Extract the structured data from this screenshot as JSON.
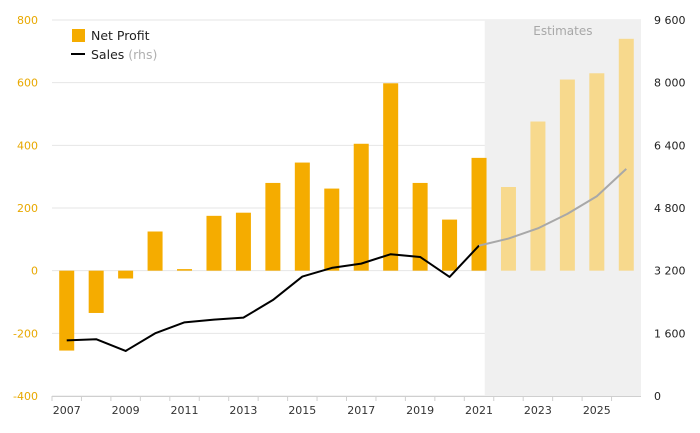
{
  "chart_data": {
    "type": "bar+line",
    "x": [
      2007,
      2008,
      2009,
      2010,
      2011,
      2012,
      2013,
      2014,
      2015,
      2016,
      2017,
      2018,
      2019,
      2020,
      2021,
      2022,
      2023,
      2024,
      2025,
      2026
    ],
    "x_tick_labels": [
      "2007",
      "2009",
      "2011",
      "2013",
      "2015",
      "2017",
      "2019",
      "2021",
      "2023",
      "2025"
    ],
    "series": [
      {
        "name": "Net Profit",
        "type": "bar",
        "axis": "left",
        "color": "#f5ac00",
        "estimate_color": "#f7d98d",
        "values": [
          -255,
          -135,
          -25,
          125,
          5,
          175,
          185,
          280,
          345,
          262,
          405,
          598,
          280,
          163,
          360,
          267,
          476,
          610,
          630,
          740
        ]
      },
      {
        "name": "Sales",
        "name_suffix": "(rhs)",
        "type": "line",
        "axis": "right",
        "color": "#000000",
        "estimate_color": "#a8a8a8",
        "values": [
          1420,
          1450,
          1150,
          1600,
          1880,
          1950,
          2000,
          2450,
          3050,
          3270,
          3380,
          3620,
          3550,
          3040,
          3840,
          4020,
          4280,
          4650,
          5100,
          5800
        ]
      }
    ],
    "estimates": {
      "label": "Estimates",
      "from_year": 2022,
      "shade_color": "#f0f0f0"
    },
    "y_left": {
      "range": [
        -400,
        800
      ],
      "ticks": [
        -400,
        -200,
        0,
        200,
        400,
        600,
        800
      ],
      "tick_labels": [
        "-400",
        "-200",
        "0",
        "200",
        "400",
        "600",
        "800"
      ],
      "color": "#e8a800"
    },
    "y_right": {
      "range": [
        0,
        9600
      ],
      "ticks": [
        0,
        1600,
        3200,
        4800,
        6400,
        8000,
        9600
      ],
      "tick_labels": [
        "0",
        "1 600",
        "3 200",
        "4 800",
        "6 400",
        "8 000",
        "9 600"
      ],
      "color": "#222222"
    },
    "legend_position": "top-left",
    "grid": "horizontal"
  }
}
